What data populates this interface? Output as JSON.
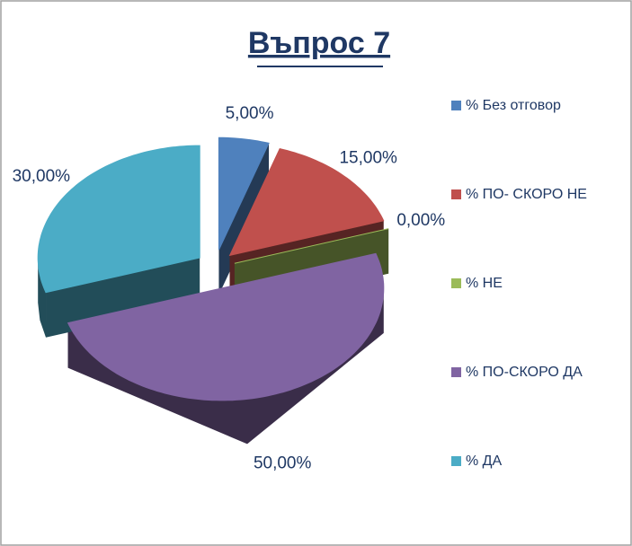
{
  "chart_data": {
    "type": "pie",
    "title": "Въпрос 7",
    "categories": [
      "% Без отговор",
      "% ПО- СКОРО НЕ",
      "% НЕ",
      "% ПО-СКОРО ДА",
      "% ДА"
    ],
    "values": [
      5,
      15,
      0,
      50,
      30
    ],
    "value_labels": [
      "5,00%",
      "15,00%",
      "0,00%",
      "50,00%",
      "30,00%"
    ],
    "colors": [
      "#4f81bd",
      "#c0504d",
      "#9bbb59",
      "#8064a2",
      "#4bacc6"
    ],
    "legend": "right"
  }
}
